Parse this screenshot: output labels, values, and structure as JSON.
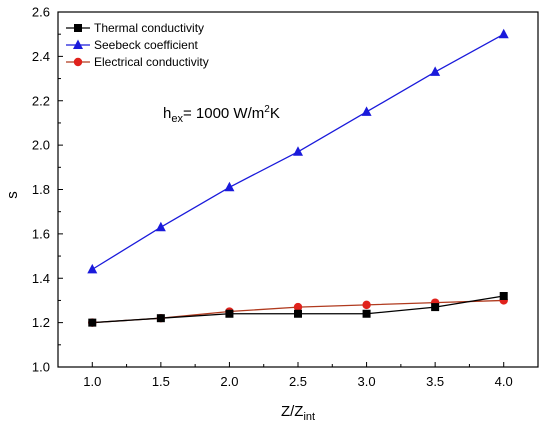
{
  "chart_data": {
    "type": "line",
    "title": "",
    "xlabel": "Z/Z",
    "xlabel_sub": "int",
    "ylabel": "s",
    "xlim": [
      0.75,
      4.25
    ],
    "ylim": [
      1.0,
      2.6
    ],
    "xticks": [
      1.0,
      1.5,
      2.0,
      2.5,
      3.0,
      3.5,
      4.0
    ],
    "xtick_labels": [
      "1.0",
      "1.5",
      "2.0",
      "2.5",
      "3.0",
      "3.5",
      "4.0"
    ],
    "yticks": [
      1.0,
      1.2,
      1.4,
      1.6,
      1.8,
      2.0,
      2.2,
      2.4,
      2.6
    ],
    "ytick_labels": [
      "1.0",
      "1.2",
      "1.4",
      "1.6",
      "1.8",
      "2.0",
      "2.2",
      "2.4",
      "2.6"
    ],
    "grid": false,
    "legend_position": "top-left",
    "x": [
      1.0,
      1.5,
      2.0,
      2.5,
      3.0,
      3.5,
      4.0
    ],
    "series": [
      {
        "name": "Thermal conductivity",
        "color": "#000000",
        "marker": "square",
        "values": [
          1.2,
          1.22,
          1.24,
          1.24,
          1.24,
          1.27,
          1.32
        ]
      },
      {
        "name": "Seebeck coefficient",
        "color": "#1a1adb",
        "marker": "triangle",
        "values": [
          1.44,
          1.63,
          1.81,
          1.97,
          2.15,
          2.33,
          2.5
        ]
      },
      {
        "name": "Electrical conductivity",
        "color": "#e0221c",
        "line_color": "#b03a1e",
        "marker": "circle",
        "values": [
          1.2,
          1.22,
          1.25,
          1.27,
          1.28,
          1.29,
          1.3
        ]
      }
    ],
    "annotation": {
      "prefix": "h",
      "sub": "ex",
      "middle": "= 1000 W/m",
      "sup": "2",
      "suffix": "K"
    }
  }
}
